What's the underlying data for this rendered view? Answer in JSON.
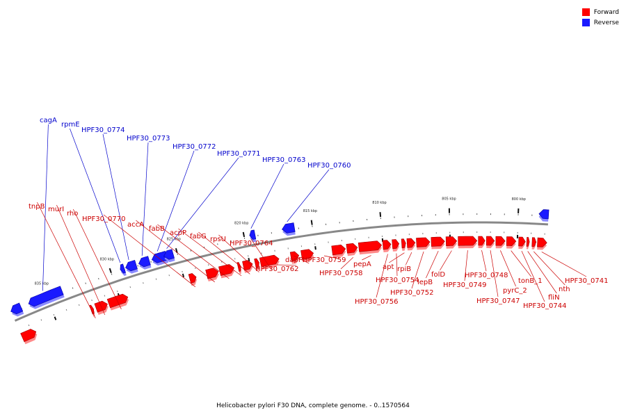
{
  "legend": {
    "forward_label": "Forward",
    "reverse_label": "Reverse",
    "forward_color": "#ff0000",
    "reverse_color": "#1a1aff"
  },
  "caption": "Helicobacter pylori F30 DNA, complete genome. - 0..1570564",
  "map": {
    "axis_unit": "kbp",
    "kbp_view_range": [
      797.8,
      837.8
    ],
    "ticks": [
      {
        "kbp": 835,
        "label": "835 kbp"
      },
      {
        "kbp": 830,
        "label": "830 kbp"
      },
      {
        "kbp": 825,
        "label": "825 kbp"
      },
      {
        "kbp": 820,
        "label": "820 kbp"
      },
      {
        "kbp": 815,
        "label": "815 kbp"
      },
      {
        "kbp": 810,
        "label": "810 kbp"
      },
      {
        "kbp": 805,
        "label": "805 kbp"
      },
      {
        "kbp": 800,
        "label": "800 kbp"
      }
    ],
    "reverse_genes": [
      {
        "name": "cagA",
        "start_kbp": 833.8,
        "end_kbp": 836.4
      },
      {
        "name": "rpmE",
        "start_kbp": 829.0,
        "end_kbp": 829.3
      },
      {
        "name": "HPF30_0774",
        "start_kbp": 828.1,
        "end_kbp": 828.9
      },
      {
        "name": "HPF30_0773",
        "start_kbp": 827.1,
        "end_kbp": 827.9
      },
      {
        "name": "HPF30_0772",
        "start_kbp": 825.8,
        "end_kbp": 826.9
      },
      {
        "name": "HPF30_0771",
        "start_kbp": 825.3,
        "end_kbp": 826.0
      },
      {
        "name": "HPF30_0763",
        "start_kbp": 819.2,
        "end_kbp": 819.6
      },
      {
        "name": "HPF30_0760",
        "start_kbp": 816.3,
        "end_kbp": 817.2
      },
      {
        "name": "",
        "start_kbp": 797.8,
        "end_kbp": 798.5
      },
      {
        "name": "",
        "start_kbp": 837.0,
        "end_kbp": 837.8
      }
    ],
    "forward_genes": [
      {
        "name": "",
        "start_kbp": 836.7,
        "end_kbp": 837.8
      },
      {
        "name": "tnpB",
        "start_kbp": 832.1,
        "end_kbp": 832.3
      },
      {
        "name": "murI",
        "start_kbp": 831.0,
        "end_kbp": 831.9
      },
      {
        "name": "rho",
        "start_kbp": 829.4,
        "end_kbp": 830.9
      },
      {
        "name": "HPF30_0770",
        "start_kbp": 824.1,
        "end_kbp": 824.6
      },
      {
        "name": "accA",
        "start_kbp": 822.4,
        "end_kbp": 823.3
      },
      {
        "name": "fabB",
        "start_kbp": 821.2,
        "end_kbp": 822.3
      },
      {
        "name": "acpP",
        "start_kbp": 820.7,
        "end_kbp": 820.9
      },
      {
        "name": "fabG",
        "start_kbp": 819.8,
        "end_kbp": 820.5
      },
      {
        "name": "rpsU",
        "start_kbp": 819.3,
        "end_kbp": 819.6
      },
      {
        "name": "HPF30_0764",
        "start_kbp": 817.8,
        "end_kbp": 819.2
      },
      {
        "name": "HPF30_0762",
        "start_kbp": 816.3,
        "end_kbp": 816.9
      },
      {
        "name": "dapF",
        "start_kbp": 815.2,
        "end_kbp": 816.1
      },
      {
        "name": "HPF30_0759",
        "start_kbp": 812.8,
        "end_kbp": 813.8
      },
      {
        "name": "HPF30_0758",
        "start_kbp": 811.9,
        "end_kbp": 812.7
      },
      {
        "name": "pepA",
        "start_kbp": 810.1,
        "end_kbp": 811.8
      },
      {
        "name": "HPF30_0756",
        "start_kbp": 809.4,
        "end_kbp": 810.0
      },
      {
        "name": "HPF30_0754",
        "start_kbp": 808.8,
        "end_kbp": 809.3
      },
      {
        "name": "apt",
        "start_kbp": 808.3,
        "end_kbp": 808.6
      },
      {
        "name": "rpiB",
        "start_kbp": 807.6,
        "end_kbp": 808.2
      },
      {
        "name": "HPF30_0752",
        "start_kbp": 806.5,
        "end_kbp": 807.5
      },
      {
        "name": "lepB",
        "start_kbp": 805.4,
        "end_kbp": 806.4
      },
      {
        "name": "folD",
        "start_kbp": 804.5,
        "end_kbp": 805.3
      },
      {
        "name": "HPF30_0749",
        "start_kbp": 803.0,
        "end_kbp": 804.4
      },
      {
        "name": "HPF30_0748",
        "start_kbp": 802.4,
        "end_kbp": 802.9
      },
      {
        "name": "HPF30_0747",
        "start_kbp": 801.7,
        "end_kbp": 802.3
      },
      {
        "name": "pyrC_2",
        "start_kbp": 800.9,
        "end_kbp": 801.6
      },
      {
        "name": "tonB_1",
        "start_kbp": 800.1,
        "end_kbp": 800.8
      },
      {
        "name": "HPF30_0744",
        "start_kbp": 799.4,
        "end_kbp": 799.9
      },
      {
        "name": "fliN",
        "start_kbp": 799.1,
        "end_kbp": 799.3
      },
      {
        "name": "nth",
        "start_kbp": 798.6,
        "end_kbp": 798.9
      },
      {
        "name": "HPF30_0741",
        "start_kbp": 797.8,
        "end_kbp": 798.5
      }
    ]
  }
}
